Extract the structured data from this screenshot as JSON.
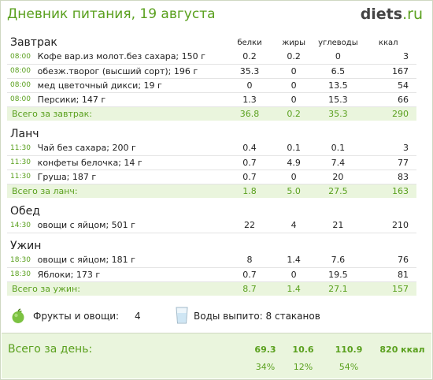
{
  "header": {
    "title": "Дневник питания, 19 августа",
    "logo_main": "diets",
    "logo_tld": ".ru"
  },
  "columns": {
    "protein": "белки",
    "fat": "жиры",
    "carbs": "углеводы",
    "kcal": "ккал"
  },
  "meals": [
    {
      "name": "Завтрак",
      "items": [
        {
          "time": "08:00",
          "name": "Кофе вар.из молот.без сахара; 150 г",
          "protein": "0.2",
          "fat": "0.2",
          "carbs": "0",
          "kcal": "3"
        },
        {
          "time": "08:00",
          "name": "обезж.творог (высший сорт); 196 г",
          "protein": "35.3",
          "fat": "0",
          "carbs": "6.5",
          "kcal": "167"
        },
        {
          "time": "08:00",
          "name": "мед цветочный дикси; 19 г",
          "protein": "0",
          "fat": "0",
          "carbs": "13.5",
          "kcal": "54"
        },
        {
          "time": "08:00",
          "name": "Персики; 147 г",
          "protein": "1.3",
          "fat": "0",
          "carbs": "15.3",
          "kcal": "66"
        }
      ],
      "total": {
        "label": "Всего за завтрак:",
        "protein": "36.8",
        "fat": "0.2",
        "carbs": "35.3",
        "kcal": "290"
      }
    },
    {
      "name": "Ланч",
      "items": [
        {
          "time": "11:30",
          "name": "Чай без сахара; 200 г",
          "protein": "0.4",
          "fat": "0.1",
          "carbs": "0.1",
          "kcal": "3"
        },
        {
          "time": "11:30",
          "name": "конфеты белочка; 14 г",
          "protein": "0.7",
          "fat": "4.9",
          "carbs": "7.4",
          "kcal": "77"
        },
        {
          "time": "11:30",
          "name": "Груша; 187 г",
          "protein": "0.7",
          "fat": "0",
          "carbs": "20",
          "kcal": "83"
        }
      ],
      "total": {
        "label": "Всего за ланч:",
        "protein": "1.8",
        "fat": "5.0",
        "carbs": "27.5",
        "kcal": "163"
      }
    },
    {
      "name": "Обед",
      "items": [
        {
          "time": "14:30",
          "name": "овощи с яйцом; 501 г",
          "protein": "22",
          "fat": "4",
          "carbs": "21",
          "kcal": "210"
        }
      ],
      "total": null
    },
    {
      "name": "Ужин",
      "items": [
        {
          "time": "18:30",
          "name": "овощи с яйцом; 181 г",
          "protein": "8",
          "fat": "1.4",
          "carbs": "7.6",
          "kcal": "76"
        },
        {
          "time": "18:30",
          "name": "Яблоки; 173 г",
          "protein": "0.7",
          "fat": "0",
          "carbs": "19.5",
          "kcal": "81"
        }
      ],
      "total": {
        "label": "Всего за ужин:",
        "protein": "8.7",
        "fat": "1.4",
        "carbs": "27.1",
        "kcal": "157"
      }
    }
  ],
  "extras": {
    "fruit_label": "Фрукты и овощи:",
    "fruit_value": "4",
    "water_label": "Воды выпито: 8 стаканов"
  },
  "day_total": {
    "label": "Всего за день:",
    "protein": "69.3",
    "fat": "10.6",
    "carbs": "110.9",
    "kcal": "820 ккал",
    "protein_pct": "34%",
    "fat_pct": "12%",
    "carbs_pct": "54%"
  },
  "icons": {
    "fruit": "apple-icon",
    "water": "water-glass-icon"
  },
  "colors": {
    "accent": "#5aa01e",
    "total_bg": "#eaf5dd"
  }
}
